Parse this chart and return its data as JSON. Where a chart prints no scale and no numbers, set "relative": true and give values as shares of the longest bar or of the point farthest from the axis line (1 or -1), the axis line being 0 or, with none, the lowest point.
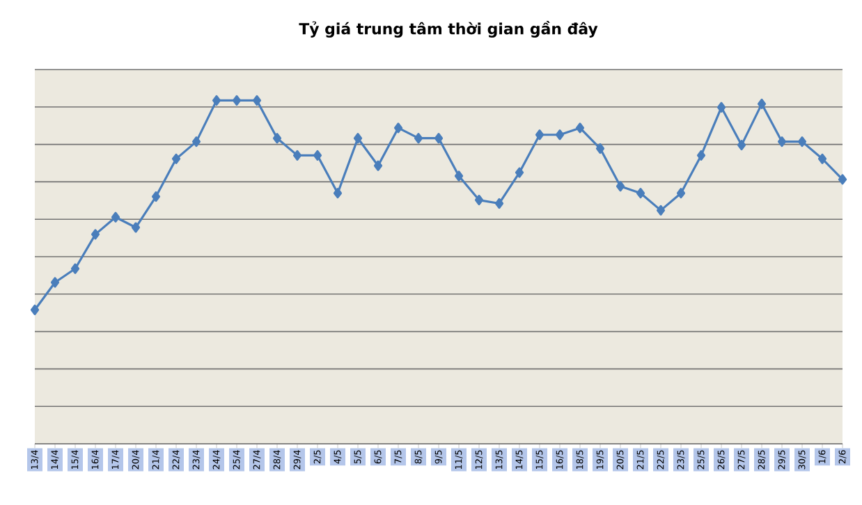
{
  "chart_data": {
    "type": "line",
    "title": "Tỷ giá trung tâm thời gian gần đây",
    "relative": true,
    "grid": "y",
    "marker": "diamond",
    "color": "#4a7ebb",
    "categories": [
      "13/4",
      "14/4",
      "15/4",
      "16/4",
      "17/4",
      "20/4",
      "21/4",
      "22/4",
      "23/4",
      "24/4",
      "25/4",
      "27/4",
      "28/4",
      "29/4",
      "2/5",
      "4/5",
      "5/5",
      "6/5",
      "7/5",
      "8/5",
      "9/5",
      "11/5",
      "12/5",
      "13/5",
      "14/5",
      "15/5",
      "16/5",
      "18/5",
      "19/5",
      "20/5",
      "21/5",
      "22/5",
      "23/5",
      "25/5",
      "26/5",
      "27/5",
      "28/5",
      "29/5",
      "30/5",
      "1/6",
      "2/6"
    ],
    "values": [
      0.39,
      0.47,
      0.51,
      0.61,
      0.66,
      0.63,
      0.72,
      0.83,
      0.88,
      1,
      1,
      1,
      0.89,
      0.84,
      0.84,
      0.73,
      0.89,
      0.81,
      0.92,
      0.89,
      0.89,
      0.78,
      0.71,
      0.7,
      0.79,
      0.9,
      0.9,
      0.92,
      0.86,
      0.75,
      0.73,
      0.68,
      0.73,
      0.84,
      0.98,
      0.87,
      0.99,
      0.88,
      0.88,
      0.83,
      0.77
    ]
  }
}
